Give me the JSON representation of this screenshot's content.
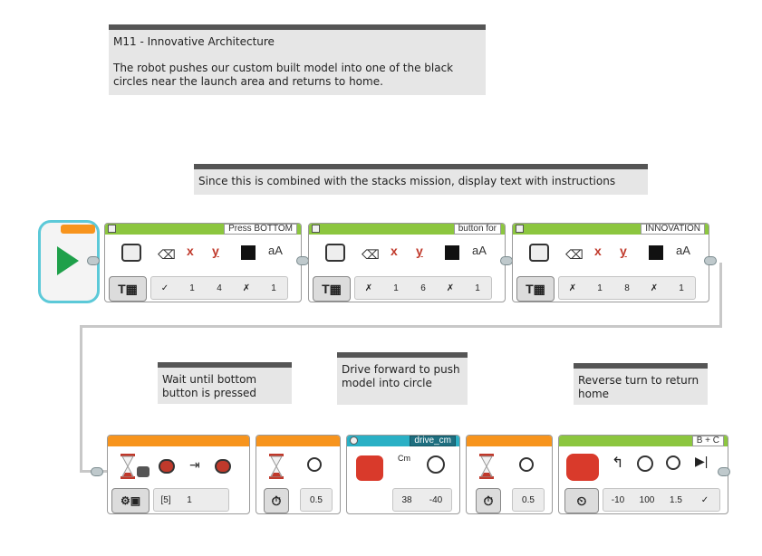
{
  "comments": {
    "title": "M11 - Innovative Architecture",
    "desc": "The robot pushes our custom built model into one of the black circles near the launch area and returns to home.",
    "display_note": "Since this is combined with the stacks mission, display text with instructions",
    "wait_note": "Wait until bottom button is pressed",
    "drive_note": "Drive forward to push model into circle",
    "reverse_note": "Reverse turn to return home"
  },
  "display_blocks": [
    {
      "text": "Press BOTTOM",
      "clear": "✓",
      "x": "1",
      "y": "4",
      "color": "✗",
      "size": "1"
    },
    {
      "text": "button for",
      "clear": "✗",
      "x": "1",
      "y": "6",
      "color": "✗",
      "size": "1"
    },
    {
      "text": "INNOVATION",
      "clear": "✗",
      "x": "1",
      "y": "8",
      "color": "✗",
      "size": "1"
    }
  ],
  "wait_button": {
    "port": "[5]",
    "state": "1"
  },
  "wait_time_1": {
    "seconds": "0.5"
  },
  "drive": {
    "name": "drive_cm",
    "distance": "38",
    "speed": "-40"
  },
  "wait_time_2": {
    "seconds": "0.5"
  },
  "move_steering": {
    "ports": "B + C",
    "steering": "-10",
    "power": "100",
    "seconds": "1.5",
    "brake": "✓"
  },
  "icons": {
    "clear": "eraser-icon",
    "font": "aA"
  },
  "colors": {
    "display_block": "#8cc63f",
    "flow_block": "#f7941d",
    "my_block": "#2ab0c5",
    "start": "#1fa04a"
  }
}
